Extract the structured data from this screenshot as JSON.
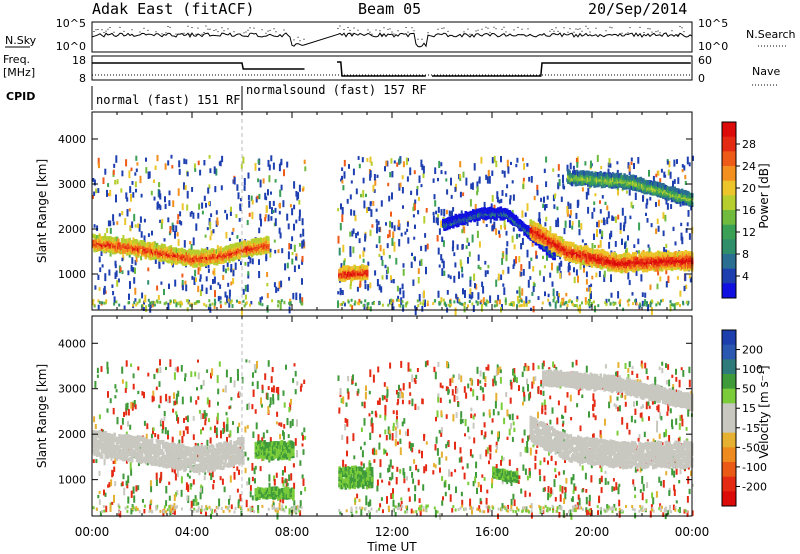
{
  "header": {
    "station": "Adak East (fitACF)",
    "beam": "Beam 05",
    "date": "20/Sep/2014"
  },
  "params": {
    "nsky_label": "N.Sky",
    "nsky_ticks": [
      "10^5",
      "10^0"
    ],
    "nsearch_label": "N.Search",
    "nsearch_ticks": [
      "10^5",
      "10^0"
    ],
    "freq_label": "Freq.",
    "freq_unit": "[MHz]",
    "freq_ticks": [
      "18",
      "8"
    ],
    "nave_label": "Nave",
    "nave_ticks": [
      "60",
      "0"
    ],
    "cpid_label": "CPID",
    "cpid_segments": [
      {
        "label": "normal (fast) 151 RF",
        "start": 0,
        "end": 6.0
      },
      {
        "label": "normalsound (fast) 157 RF",
        "start": 6.0,
        "end": 24
      }
    ],
    "data_gaps_ut": [
      [
        8.5,
        9.8
      ],
      [
        13.4,
        13.6
      ]
    ]
  },
  "chart_data": [
    {
      "type": "heatmap",
      "name": "power",
      "ylabel": "Slant Range [km]",
      "yticks": [
        1000,
        2000,
        3000,
        4000
      ],
      "ylim": [
        200,
        4600
      ],
      "xlim": [
        0,
        24
      ],
      "colorbar": {
        "label": "Power [dB]",
        "ticks": [
          "4",
          "8",
          "12",
          "16",
          "20",
          "24",
          "28"
        ],
        "colors": [
          "#1010e0",
          "#1e3fb0",
          "#2a6e92",
          "#2f8f6a",
          "#3aa055",
          "#70bb3e",
          "#b6cf2e",
          "#ecc52a",
          "#f28f1e",
          "#ee5a18",
          "#e52a14",
          "#dd0a0a"
        ]
      },
      "bands": [
        {
          "t": [
            0.0,
            1.5,
            3.0,
            4.0,
            5.0,
            6.0,
            7.0
          ],
          "r": [
            1700,
            1600,
            1450,
            1350,
            1400,
            1550,
            1650
          ],
          "value": 26,
          "width": 260
        },
        {
          "t": [
            9.8,
            11.0
          ],
          "r": [
            1000,
            1050
          ],
          "value": 28,
          "width": 220
        },
        {
          "t": [
            14.0,
            15.5,
            16.5,
            17.5,
            18.5
          ],
          "r": [
            2100,
            2350,
            2350,
            1900,
            1400
          ],
          "value": 8,
          "width": 160
        },
        {
          "t": [
            17.5,
            19.0,
            21.0,
            23.0,
            24.0
          ],
          "r": [
            2000,
            1500,
            1250,
            1300,
            1300
          ],
          "value": 28,
          "width": 320
        },
        {
          "t": [
            19.0,
            21.5,
            24.0
          ],
          "r": [
            3150,
            3050,
            2650
          ],
          "value": 16,
          "width": 220
        }
      ]
    },
    {
      "type": "heatmap",
      "name": "velocity",
      "ylabel": "Slant Range [km]",
      "xlabel": "Time UT",
      "xticks": [
        "00:00",
        "04:00",
        "08:00",
        "12:00",
        "16:00",
        "20:00",
        "00:00"
      ],
      "yticks": [
        1000,
        2000,
        3000,
        4000
      ],
      "ylim": [
        200,
        4600
      ],
      "xlim": [
        0,
        24
      ],
      "colorbar": {
        "label": "Velocity [m s⁻¹]",
        "ticks": [
          "200",
          "100",
          "50",
          "15",
          "-15",
          "-50",
          "-100",
          "-200"
        ],
        "colors": [
          "#1d3fae",
          "#2a58b0",
          "#2f7a7a",
          "#3f9a3a",
          "#7acc3a",
          "#c8c8c0",
          "#c8c8c0",
          "#e6b030",
          "#ee8a1e",
          "#ea5a16",
          "#e52a14",
          "#dd0a0a"
        ]
      },
      "bands": [
        {
          "t": [
            0.0,
            1.5,
            3.0,
            4.0,
            5.0,
            6.0
          ],
          "r": [
            1800,
            1700,
            1550,
            1450,
            1500,
            1650
          ],
          "value": 0,
          "width": 480
        },
        {
          "t": [
            6.5,
            8.0
          ],
          "r": [
            1650,
            1650
          ],
          "value": 50,
          "width": 300
        },
        {
          "t": [
            6.5,
            8.0
          ],
          "r": [
            700,
            700
          ],
          "value": 50,
          "width": 160
        },
        {
          "t": [
            9.8,
            11.2
          ],
          "r": [
            1050,
            1050
          ],
          "value": 50,
          "width": 380
        },
        {
          "t": [
            16.0,
            17.0
          ],
          "r": [
            1150,
            1050
          ],
          "value": 50,
          "width": 140
        },
        {
          "t": [
            17.5,
            19.0,
            21.0,
            23.0,
            24.0
          ],
          "r": [
            2100,
            1700,
            1550,
            1550,
            1550
          ],
          "value": 0,
          "width": 480
        },
        {
          "t": [
            18.0,
            21.0,
            24.0
          ],
          "r": [
            3250,
            3100,
            2700
          ],
          "value": 0,
          "width": 260
        }
      ]
    }
  ]
}
